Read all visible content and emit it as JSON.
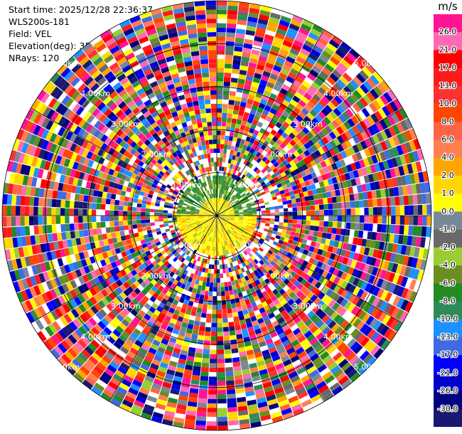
{
  "header": {
    "start_time": "Start time: 2025/12/28 22:36:37",
    "site": "WLS200s-181",
    "field": "Field: VEL",
    "elevation": "Elevation(deg): 35.00",
    "nrays": "NRays: 120"
  },
  "chart_data": {
    "type": "ppi",
    "field": "VEL",
    "units": "m/s",
    "n_rays": 120,
    "elevation_deg": 35.0,
    "range_ring_labels": [
      "1.00km",
      "2.00km",
      "3.00km",
      "4.00km",
      "5.00km"
    ],
    "range_rings_km": [
      1,
      2,
      3,
      4,
      5
    ],
    "max_range_km": 5,
    "colorbar": {
      "label": "m/s",
      "ticks": [
        "26.0",
        "21.0",
        "17.0",
        "13.0",
        "10.0",
        "8.0",
        "6.0",
        "4.0",
        "2.0",
        "1.0",
        "0.0",
        "-1.0",
        "-2.0",
        "-4.0",
        "-6.0",
        "-8.0",
        "-10.0",
        "-13.0",
        "-17.0",
        "-21.0",
        "-26.0",
        "-30.0"
      ],
      "colors": [
        "#ff1493",
        "#ff69b4",
        "#ff0000",
        "#ff1a1a",
        "#ff3030",
        "#ff4500",
        "#ff6347",
        "#ff7f50",
        "#ffa500",
        "#ffd700",
        "#ffff00",
        "#778899",
        "#696969",
        "#9acd32",
        "#6b8e23",
        "#228b22",
        "#2e8b57",
        "#1e90ff",
        "#4169e1",
        "#0000ff",
        "#0000cd",
        "#000080",
        "#191970"
      ]
    }
  }
}
